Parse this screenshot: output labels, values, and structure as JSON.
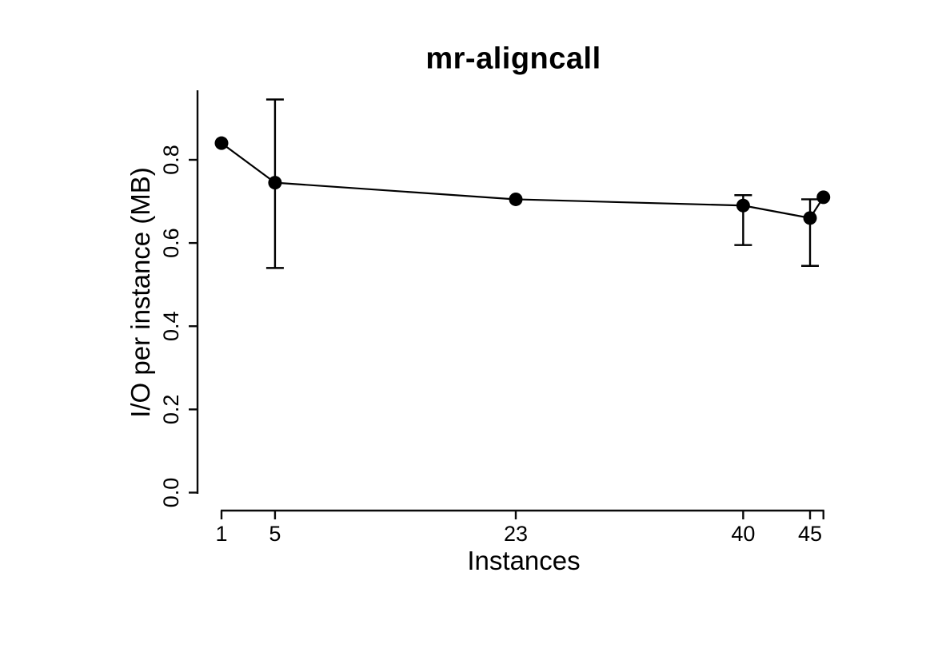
{
  "page": {
    "background_color": "#ffffff",
    "foreground_color": "#000000"
  },
  "chart_data": {
    "type": "line",
    "title": "mr-aligncall",
    "xlabel": "Instances",
    "ylabel": "I/O per instance (MB)",
    "marker": "filled-circle",
    "line_color": "#000000",
    "point_color": "#000000",
    "grid": false,
    "legend": "none",
    "xlim": [
      1,
      46
    ],
    "ylim": [
      0.0,
      0.97
    ],
    "x": [
      1,
      5,
      23,
      40,
      45,
      46
    ],
    "series": [
      {
        "name": "I/O per instance (MB)",
        "values": [
          0.84,
          0.745,
          0.705,
          0.69,
          0.66,
          0.71
        ],
        "error_low": [
          null,
          0.54,
          null,
          0.595,
          0.545,
          null
        ],
        "error_high": [
          null,
          0.945,
          null,
          0.715,
          0.705,
          null
        ]
      }
    ],
    "x_ticks": [
      {
        "value": 1,
        "label": "1"
      },
      {
        "value": 5,
        "label": "5"
      },
      {
        "value": 23,
        "label": "23"
      },
      {
        "value": 40,
        "label": "40"
      },
      {
        "value": 45,
        "label": "45"
      },
      {
        "value": 46,
        "label": ""
      }
    ],
    "y_ticks": [
      {
        "value": 0.0,
        "label": "0.0"
      },
      {
        "value": 0.2,
        "label": "0.2"
      },
      {
        "value": 0.4,
        "label": "0.4"
      },
      {
        "value": 0.6,
        "label": "0.6"
      },
      {
        "value": 0.8,
        "label": "0.8"
      }
    ]
  }
}
